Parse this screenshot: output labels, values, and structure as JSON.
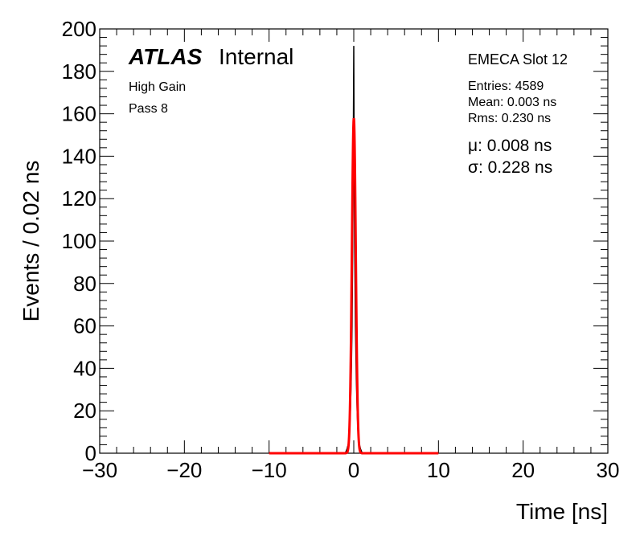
{
  "chart_data": {
    "type": "histogram",
    "xlabel": "Time [ns]",
    "ylabel": "Events / 0.02 ns",
    "xlim": [
      -30,
      30
    ],
    "ylim": [
      0,
      200
    ],
    "x_ticks": [
      -30,
      -20,
      -10,
      0,
      10,
      20,
      30
    ],
    "x_tick_labels": [
      "−30",
      "−20",
      "−10",
      "0",
      "10",
      "20",
      "30"
    ],
    "y_ticks": [
      0,
      20,
      40,
      60,
      80,
      100,
      120,
      140,
      160,
      180,
      200
    ],
    "y_tick_labels": [
      "0",
      "20",
      "40",
      "60",
      "80",
      "100",
      "120",
      "140",
      "160",
      "180",
      "200"
    ],
    "grid": false,
    "annotations": {
      "atlas": "ATLAS",
      "internal": "Internal",
      "gain": "High Gain",
      "pass": "Pass 8",
      "slot": "EMECA Slot 12",
      "entries": "Entries: 4589",
      "mean": "Mean: 0.003 ns",
      "rms": "Rms: 0.230 ns",
      "mu": "μ: 0.008 ns",
      "sigma": "σ: 0.228 ns"
    },
    "histogram": {
      "name": "",
      "color": "#000000",
      "x": [
        -1.0,
        -0.8,
        -0.6,
        -0.5,
        -0.4,
        -0.3,
        -0.2,
        -0.1,
        -0.05,
        0.0,
        0.05,
        0.1,
        0.2,
        0.3,
        0.4,
        0.5,
        0.6,
        0.8,
        1.0
      ],
      "y": [
        0,
        2,
        5,
        10,
        20,
        35,
        60,
        110,
        150,
        192,
        134,
        100,
        60,
        35,
        20,
        10,
        5,
        2,
        0
      ]
    },
    "fit": {
      "name": "",
      "type": "gaussian",
      "color": "#ff0000",
      "mu": 0.008,
      "sigma": 0.228,
      "amplitude": 158,
      "range": [
        -10,
        10
      ]
    }
  }
}
